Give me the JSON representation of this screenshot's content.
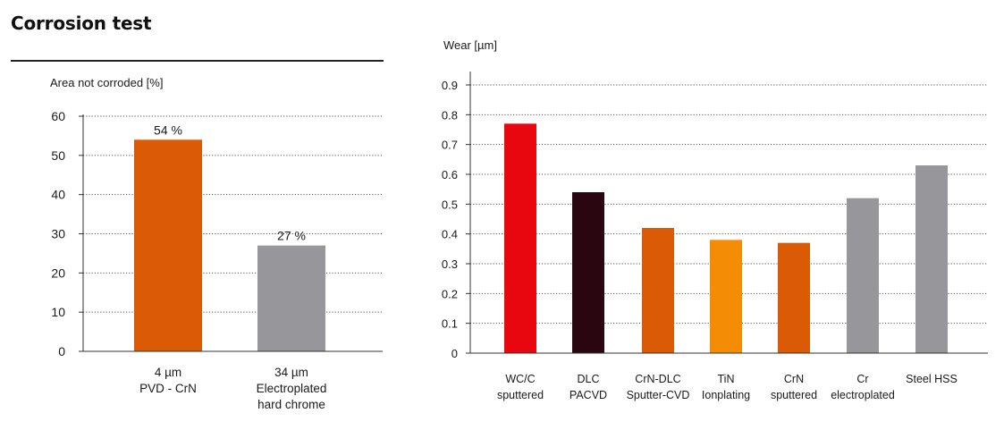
{
  "page": {
    "title": "Corrosion test"
  },
  "chart_data": [
    {
      "type": "bar",
      "title": "Corrosion test",
      "ylabel": "Area not corroded [%]",
      "ylim": [
        0,
        60
      ],
      "yticks": [
        0,
        10,
        20,
        30,
        40,
        50,
        60
      ],
      "grid": true,
      "categories": [
        [
          "4 µm",
          "PVD - CrN"
        ],
        [
          "34 µm",
          "Electroplated",
          "hard chrome"
        ]
      ],
      "values": [
        54,
        27
      ],
      "data_labels": [
        "54 %",
        "27 %"
      ],
      "colors": [
        "#db5a06",
        "#96969b"
      ]
    },
    {
      "type": "bar",
      "title": "",
      "ylabel": "Wear [µm]",
      "ylim": [
        0,
        0.9
      ],
      "yticks": [
        "0",
        "0.1",
        "0.2",
        "0.3",
        "0.4",
        "0.5",
        "0.6",
        "0.7",
        "0.8",
        "0.9"
      ],
      "grid": true,
      "categories": [
        [
          "WC/C",
          "sputtered"
        ],
        [
          "DLC",
          "PACVD"
        ],
        [
          "CrN-DLC",
          "Sputter-CVD"
        ],
        [
          "TiN",
          "Ionplating"
        ],
        [
          "CrN",
          "sputtered"
        ],
        [
          "Cr",
          "electroplated"
        ],
        [
          "Steel HSS"
        ]
      ],
      "values": [
        0.77,
        0.54,
        0.42,
        0.38,
        0.37,
        0.52,
        0.63
      ],
      "colors": [
        "#e8070e",
        "#2a0710",
        "#db5a06",
        "#f58c05",
        "#db5a06",
        "#96969b",
        "#96969b"
      ]
    }
  ]
}
